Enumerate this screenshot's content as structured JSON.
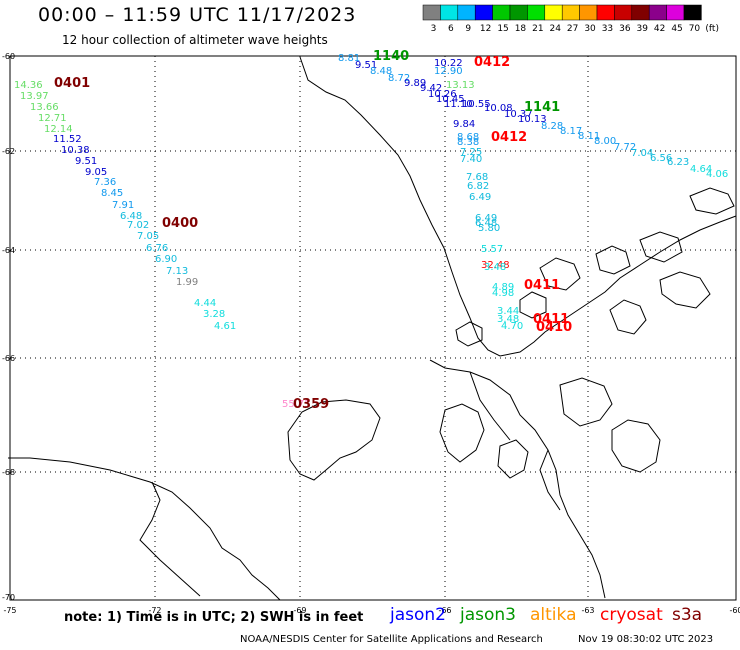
{
  "header": {
    "title": "00:00 – 11:59 UTC 11/17/2023",
    "subtitle": "12 hour collection of altimeter wave heights"
  },
  "colorbar": {
    "labels": [
      "3",
      "6",
      "9",
      "12",
      "15",
      "18",
      "21",
      "24",
      "27",
      "30",
      "33",
      "36",
      "39",
      "42",
      "45",
      "70"
    ],
    "unit": "(ft)",
    "colors": [
      "#808080",
      "#00e5e5",
      "#00b4ff",
      "#0000ff",
      "#00c800",
      "#009600",
      "#00e000",
      "#ffff00",
      "#ffc800",
      "#ff9600",
      "#ff0000",
      "#c80000",
      "#800000",
      "#8b008b",
      "#dd00dd",
      "#000000"
    ]
  },
  "axes": {
    "lat_labels": [
      "-60",
      "-62",
      "-64",
      "-66",
      "-68",
      "-70"
    ],
    "lon_labels": [
      "-75",
      "-72",
      "-69",
      "-66",
      "-63",
      "-60"
    ]
  },
  "tracks": [
    {
      "id": "0401",
      "color": "#800000",
      "labels": [
        {
          "text": "14.36",
          "color": "#66dd66"
        },
        {
          "text": "13.97",
          "color": "#66dd66"
        },
        {
          "text": "13.66",
          "color": "#66dd66"
        },
        {
          "text": "12.71",
          "color": "#66dd66"
        },
        {
          "text": "12.14",
          "color": "#66dd66"
        },
        {
          "text": "11.52",
          "color": "#0000cc"
        },
        {
          "text": "10.38",
          "color": "#0000cc"
        },
        {
          "text": "9.51",
          "color": "#0000cc"
        },
        {
          "text": "9.05",
          "color": "#0000cc"
        },
        {
          "text": "7.36",
          "color": "#1199ee"
        },
        {
          "text": "8.45",
          "color": "#1199ee"
        },
        {
          "text": "7.91",
          "color": "#1199ee"
        },
        {
          "text": "6.48",
          "color": "#11bbdd"
        },
        {
          "text": "7.02",
          "color": "#11bbdd"
        },
        {
          "text": "7.05",
          "color": "#11bbdd"
        },
        {
          "text": "6.76",
          "color": "#11bbdd"
        },
        {
          "text": "6.90",
          "color": "#11bbdd"
        },
        {
          "text": "7.13",
          "color": "#11bbdd"
        }
      ]
    },
    {
      "id": "0400",
      "color": "#800000",
      "labels": [
        {
          "text": "1.99",
          "color": "#808080"
        },
        {
          "text": "4.44",
          "color": "#11dddd"
        },
        {
          "text": "3.28",
          "color": "#11dddd"
        },
        {
          "text": "4.61",
          "color": "#11dddd"
        }
      ]
    },
    {
      "id": "1140",
      "color": "#009600",
      "labels": [
        {
          "text": "8.81",
          "color": "#1199ee"
        },
        {
          "text": "9.51",
          "color": "#0000cc"
        },
        {
          "text": "8.48",
          "color": "#1199ee"
        },
        {
          "text": "8.72",
          "color": "#1199ee"
        },
        {
          "text": "9.89",
          "color": "#0000cc"
        },
        {
          "text": "9.42",
          "color": "#0000cc"
        },
        {
          "text": "10.26",
          "color": "#0000cc"
        },
        {
          "text": "10.45",
          "color": "#0000cc"
        },
        {
          "text": "11.10",
          "color": "#0000cc"
        },
        {
          "text": "10.55",
          "color": "#0000cc"
        }
      ]
    },
    {
      "id": "0412",
      "color": "#ff0000",
      "labels": [
        {
          "text": "10.22",
          "color": "#0000cc"
        },
        {
          "text": "12.90",
          "color": "#1199ee"
        },
        {
          "text": "13.13",
          "color": "#66dd66"
        },
        {
          "text": "9.84",
          "color": "#0000cc"
        },
        {
          "text": "8.68",
          "color": "#1199ee"
        },
        {
          "text": "8.38",
          "color": "#1199ee"
        },
        {
          "text": "7.25",
          "color": "#11bbdd"
        },
        {
          "text": "7.40",
          "color": "#11bbdd"
        },
        {
          "text": "7.68",
          "color": "#11bbdd"
        },
        {
          "text": "6.82",
          "color": "#11bbdd"
        },
        {
          "text": "6.49",
          "color": "#11bbdd"
        },
        {
          "text": "6.49",
          "color": "#11bbdd"
        },
        {
          "text": "6.48",
          "color": "#11bbdd"
        },
        {
          "text": "5.80",
          "color": "#11bbdd"
        },
        {
          "text": "5.57",
          "color": "#11dddd"
        },
        {
          "text": "32.48",
          "color": "#ff0000"
        },
        {
          "text": "3.48",
          "color": "#11dddd"
        }
      ]
    },
    {
      "id": "1141",
      "color": "#009600",
      "labels": [
        {
          "text": "10.08",
          "color": "#0000cc"
        },
        {
          "text": "10.37",
          "color": "#0000cc"
        },
        {
          "text": "10.13",
          "color": "#0000cc"
        },
        {
          "text": "8.28",
          "color": "#1199ee"
        },
        {
          "text": "8.17",
          "color": "#1199ee"
        },
        {
          "text": "8.11",
          "color": "#1199ee"
        },
        {
          "text": "8.00",
          "color": "#1199ee"
        },
        {
          "text": "7.72",
          "color": "#1199ee"
        },
        {
          "text": "7.04",
          "color": "#11bbdd"
        },
        {
          "text": "6.56",
          "color": "#11bbdd"
        },
        {
          "text": "6.23",
          "color": "#11bbdd"
        },
        {
          "text": "4.64",
          "color": "#11dddd"
        },
        {
          "text": "4.06",
          "color": "#11dddd"
        }
      ]
    },
    {
      "id": "0411",
      "color": "#ff0000",
      "labels": [
        {
          "text": "4.89",
          "color": "#11dddd"
        },
        {
          "text": "4.98",
          "color": "#11dddd"
        },
        {
          "text": "3.44",
          "color": "#11dddd"
        },
        {
          "text": "3.48",
          "color": "#11dddd"
        },
        {
          "text": "4.70",
          "color": "#11dddd"
        }
      ]
    },
    {
      "id": "0410",
      "color": "#ff0000",
      "labels": []
    },
    {
      "id": "0359",
      "color": "#800000",
      "labels": [
        {
          "text": "55.75",
          "color": "#ff88cc"
        }
      ]
    }
  ],
  "footer": {
    "note": "note:  1) Time is in UTC;  2) SWH is in feet",
    "satellites": [
      {
        "name": "jason2",
        "color": "#0000ff"
      },
      {
        "name": "jason3",
        "color": "#009600"
      },
      {
        "name": "altika",
        "color": "#ff9600"
      },
      {
        "name": "cryosat",
        "color": "#ff0000"
      },
      {
        "name": "s3a",
        "color": "#800000"
      }
    ],
    "credit": "NOAA/NESDIS Center for Satellite Applications and Research",
    "timestamp": "Nov 19 08:30:02 UTC 2023"
  }
}
